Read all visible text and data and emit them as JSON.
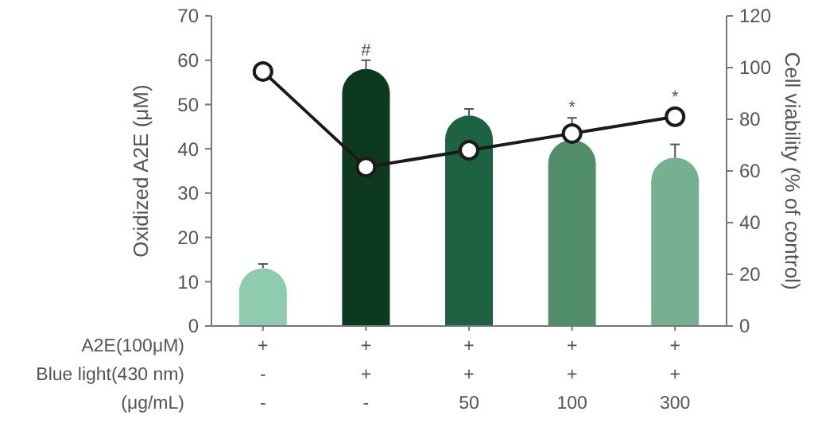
{
  "chart_data": {
    "type": "bar",
    "categories": [
      "+\n-\n-",
      "+\n+\n-",
      "+\n+\n50",
      "+\n+\n100",
      "+\n+\n300"
    ],
    "series": [
      {
        "colors": [
          "#8fcbae",
          "#0d3a1f",
          "#1d6341",
          "#4f8e68",
          "#76b093"
        ],
        "values": [
          13,
          58,
          47.5,
          42,
          38
        ],
        "errors": [
          1,
          2,
          1.5,
          5,
          3
        ]
      },
      {
        "type": "line",
        "axis": "y2",
        "color": "#1a1a1a",
        "values": [
          98.5,
          61.5,
          68,
          74.5,
          81
        ]
      }
    ],
    "ylabel": "Oxidized A2E (μM)",
    "y2label": "Cell viability (% of control)",
    "ylim": [
      0,
      70
    ],
    "yticks": [
      0,
      10,
      20,
      30,
      40,
      50,
      60,
      70
    ],
    "y2lim": [
      0,
      120
    ],
    "y2ticks": [
      0,
      20,
      40,
      60,
      80,
      100,
      120
    ],
    "annotations": [
      "A2E(100μM)",
      "Blue light(430 nm)",
      "(μg/mL)",
      {
        "text": "#",
        "x": "+\n+\n-",
        "y": 60
      },
      {
        "text": "*",
        "x": "+\n+\n100",
        "y": 47
      },
      {
        "text": "*",
        "x": "+\n+\n300",
        "y": 41
      }
    ],
    "marker": "circle",
    "line_style": "solid",
    "grid": false
  }
}
